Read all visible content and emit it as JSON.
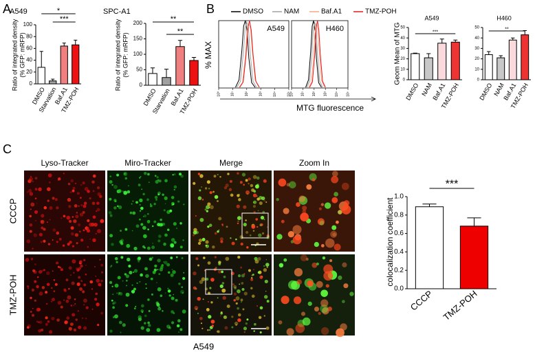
{
  "panel_labels": [
    "A",
    "B",
    "C"
  ],
  "chart_data": [
    {
      "type": "bar",
      "title": "A549",
      "ylabel": [
        "Ratio of integrated density",
        "(% GFP: mRFP)"
      ],
      "categories": [
        "DMSO",
        "Starvation",
        "Baf.A1",
        "TMZ-POH"
      ],
      "values": [
        28,
        5,
        64,
        66
      ],
      "errors": [
        27,
        3,
        5,
        8
      ],
      "colors": [
        "#ffffff",
        "#a0a0a0",
        "#f08080",
        "#ee1111"
      ],
      "ylim": [
        0,
        100
      ],
      "yticks": [
        0,
        20,
        40,
        60,
        80,
        100
      ],
      "annotations": [
        {
          "text": "*",
          "from": "DMSO",
          "to": "TMZ-POH"
        },
        {
          "text": "***",
          "from": "Starvation",
          "to": "TMZ-POH"
        }
      ]
    },
    {
      "type": "bar",
      "title": "SPC-A1",
      "ylabel": [
        "Ratio of integrated density",
        "(% GFP: mRFP)"
      ],
      "categories": [
        "DMSO",
        "Starvation",
        "Baf.A1",
        "TMZ-POH"
      ],
      "values": [
        38,
        25,
        125,
        80
      ],
      "errors": [
        18,
        27,
        20,
        10
      ],
      "colors": [
        "#ffffff",
        "#a0a0a0",
        "#f08080",
        "#ee1111"
      ],
      "ylim": [
        0,
        200
      ],
      "yticks": [
        0,
        50,
        100,
        150,
        200
      ],
      "annotations": [
        {
          "text": "**",
          "from": "DMSO",
          "to": "TMZ-POH"
        },
        {
          "text": "**",
          "from": "Starvation",
          "to": "TMZ-POH"
        }
      ]
    },
    {
      "type": "line",
      "ylabel": "% MAX",
      "xlabel": "MTG  fluorescence",
      "xlim": [
        0,
        5
      ],
      "ylim": [
        0,
        100
      ],
      "xticks": [
        {
          "value": 0,
          "label": "10⁰"
        },
        {
          "value": 1,
          "label": "10¹"
        },
        {
          "value": 2,
          "label": "10²"
        },
        {
          "value": 3,
          "label": "10³"
        },
        {
          "value": 4,
          "label": "10⁴"
        },
        {
          "value": 5,
          "label": "10⁵"
        }
      ],
      "panels": [
        {
          "title": "A549",
          "series": [
            {
              "name": "DMSO",
              "color": "#000000",
              "x": [
                1.2,
                1.45,
                1.65,
                1.78,
                1.9,
                2.02,
                2.15,
                2.35,
                2.6
              ],
              "values": [
                1,
                12,
                55,
                92,
                100,
                85,
                45,
                8,
                1
              ]
            },
            {
              "name": "NAM",
              "color": "#a0a0a0",
              "x": [
                1.3,
                1.55,
                1.75,
                1.88,
                2.0,
                2.12,
                2.25,
                2.45,
                2.7
              ],
              "values": [
                1,
                10,
                50,
                88,
                98,
                90,
                50,
                10,
                1
              ]
            },
            {
              "name": "Baf.A1",
              "color": "#f4a582",
              "x": [
                1.45,
                1.7,
                1.9,
                2.03,
                2.15,
                2.27,
                2.4,
                2.6,
                2.85
              ],
              "values": [
                1,
                8,
                45,
                85,
                96,
                88,
                55,
                12,
                2
              ]
            },
            {
              "name": "TMZ-POH",
              "color": "#e41a1c",
              "x": [
                1.5,
                1.75,
                1.95,
                2.08,
                2.2,
                2.32,
                2.45,
                2.65,
                2.9
              ],
              "values": [
                1,
                9,
                48,
                90,
                100,
                86,
                50,
                10,
                1
              ]
            }
          ]
        },
        {
          "title": "H460",
          "series": [
            {
              "name": "DMSO",
              "color": "#000000",
              "x": [
                1.25,
                1.5,
                1.7,
                1.83,
                1.95,
                2.07,
                2.2,
                2.4,
                2.65
              ],
              "values": [
                1,
                12,
                55,
                92,
                100,
                85,
                45,
                8,
                1
              ]
            },
            {
              "name": "NAM",
              "color": "#a0a0a0",
              "x": [
                1.35,
                1.6,
                1.8,
                1.93,
                2.05,
                2.17,
                2.3,
                2.5,
                2.75
              ],
              "values": [
                1,
                10,
                50,
                88,
                98,
                90,
                50,
                10,
                1
              ]
            },
            {
              "name": "Baf.A1",
              "color": "#f4a582",
              "x": [
                1.5,
                1.75,
                1.95,
                2.08,
                2.2,
                2.32,
                2.45,
                2.65,
                2.9
              ],
              "values": [
                1,
                8,
                45,
                85,
                96,
                88,
                55,
                12,
                2
              ]
            },
            {
              "name": "TMZ-POH",
              "color": "#e41a1c",
              "x": [
                1.6,
                1.85,
                2.05,
                2.18,
                2.3,
                2.42,
                2.55,
                2.75,
                3.0
              ],
              "values": [
                1,
                9,
                48,
                90,
                100,
                86,
                50,
                10,
                1
              ]
            }
          ]
        }
      ]
    },
    {
      "type": "bar",
      "title": "A549",
      "ylabel": "Geom Mean of MTG",
      "categories": [
        "DMSO",
        "NAM",
        "Baf.A1",
        "TMZ-POH"
      ],
      "values": [
        25,
        21,
        35,
        36
      ],
      "errors": [
        0.5,
        4,
        4,
        2
      ],
      "colors": [
        "#ffffff",
        "#c8c8c8",
        "#fadadd",
        "#ee3333"
      ],
      "ylim": [
        0,
        50
      ],
      "yticks": [
        0,
        10,
        20,
        30,
        40,
        50
      ],
      "annotations": [
        {
          "text": "***",
          "from": "DMSO",
          "to": "TMZ-POH"
        }
      ]
    },
    {
      "type": "bar",
      "title": "H460",
      "categories": [
        "DMSO",
        "NAM",
        "Baf.A1",
        "TMZ-POH"
      ],
      "values": [
        24,
        21,
        38,
        43
      ],
      "errors": [
        3,
        2,
        2,
        4
      ],
      "colors": [
        "#ffffff",
        "#c8c8c8",
        "#fadadd",
        "#ee3333"
      ],
      "ylim": [
        0,
        50
      ],
      "yticks": [
        0,
        10,
        20,
        30,
        40,
        50
      ],
      "annotations": [
        {
          "text": "**",
          "from": "DMSO",
          "to": "TMZ-POH"
        }
      ]
    },
    {
      "type": "bar",
      "ylabel": "colocalization coefficient",
      "categories": [
        "CCCP",
        "TMZ-POH"
      ],
      "values": [
        0.89,
        0.68
      ],
      "errors": [
        0.03,
        0.09
      ],
      "colors": [
        "#ffffff",
        "#ee0000"
      ],
      "ylim": [
        0,
        1
      ],
      "yticks": [
        {
          "value": 0,
          "label": "0.0"
        },
        0.2,
        0.4,
        0.6,
        0.8,
        {
          "value": 1,
          "label": "1.0"
        }
      ],
      "annotations": [
        {
          "text": "***",
          "from": "CCCP",
          "to": "TMZ-POH"
        }
      ]
    }
  ],
  "microscopy": {
    "columns": [
      "Lyso-Tracker",
      "Miro-Tracker",
      "Merge",
      "Zoom In"
    ],
    "rows": [
      "CCCP",
      "TMZ-POH"
    ],
    "caption": "A549"
  }
}
